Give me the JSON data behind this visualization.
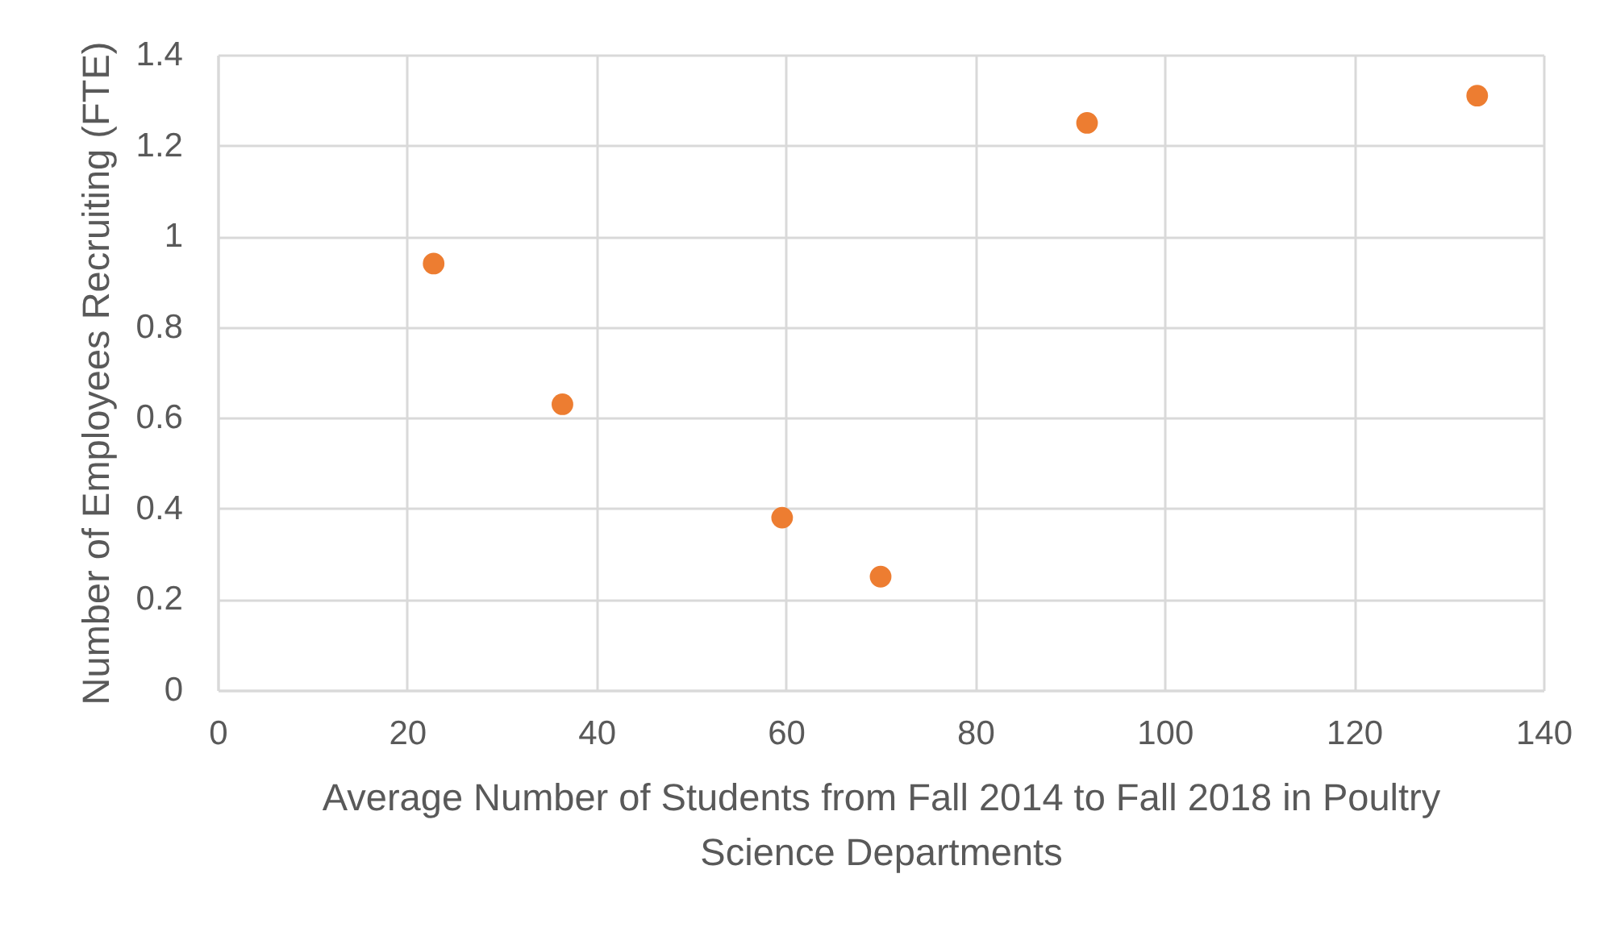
{
  "chart_data": {
    "type": "scatter",
    "xlabel": "Average Number of Students from Fall 2014 to Fall 2018 in Poultry Science Departments",
    "ylabel": "Number of Employees Recruiting (FTE)",
    "x": [
      22.8,
      36.4,
      59.6,
      70,
      91.8,
      133
    ],
    "series": [
      {
        "color": "#ed7d31",
        "values": [
          0.94,
          0.63,
          0.38,
          0.25,
          1.25,
          1.31
        ]
      }
    ],
    "xlim": [
      0,
      140
    ],
    "xticks": [
      0,
      20,
      40,
      60,
      80,
      100,
      120,
      140
    ],
    "ylim": [
      0,
      1.4
    ],
    "yticks": [
      0,
      0.2,
      0.4,
      0.6,
      0.8,
      1,
      1.2,
      1.4
    ],
    "grid": true,
    "marker": "circle"
  }
}
